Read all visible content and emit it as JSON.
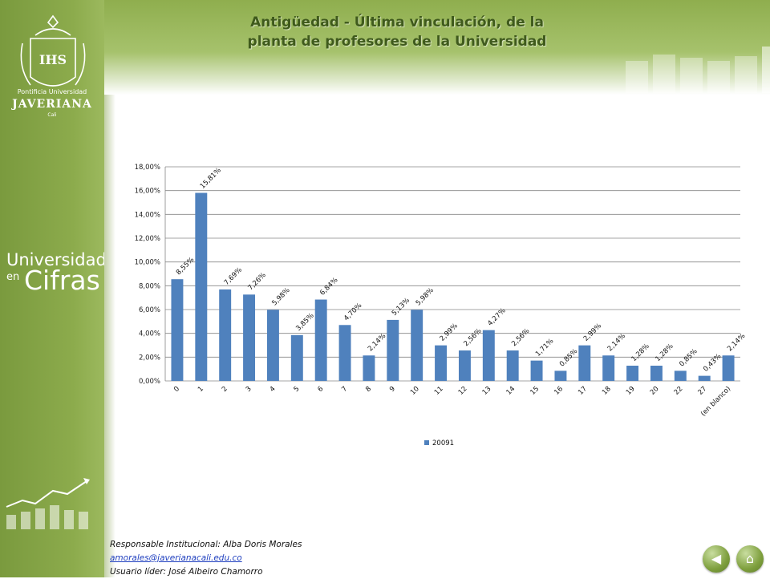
{
  "header": {
    "title_line1": "Antigüedad -  Última vinculación,  de la",
    "title_line2": "planta de profesores de la Universidad"
  },
  "sidebar": {
    "logo_line1": "Pontificia Universidad",
    "logo_line2": "JAVERIANA",
    "logo_line3": "Cali",
    "brand_word1": "Universidad",
    "brand_word2": "en",
    "brand_word3": "Cifras"
  },
  "footer": {
    "responsable": "Responsable  Institucional: Alba Doris Morales",
    "email": "amorales@javerianacali.edu.co",
    "usuario": "Usuario líder: José  Albeiro Chamorro"
  },
  "nav": {
    "back_icon": "back-arrow-icon",
    "home_icon": "home-icon"
  },
  "colors": {
    "bar": "#4f81bd",
    "accent": "#8cab4c",
    "title": "#3f5a1c"
  },
  "chart_data": {
    "type": "bar",
    "categories": [
      "0",
      "1",
      "2",
      "3",
      "4",
      "5",
      "6",
      "7",
      "8",
      "9",
      "10",
      "11",
      "12",
      "13",
      "14",
      "15",
      "16",
      "17",
      "18",
      "19",
      "20",
      "22",
      "27",
      "(en blanco)"
    ],
    "series": [
      {
        "name": "20091",
        "values": [
          8.55,
          15.81,
          7.69,
          7.26,
          5.98,
          3.85,
          6.84,
          4.7,
          2.14,
          5.13,
          5.98,
          2.99,
          2.56,
          4.27,
          2.56,
          1.71,
          0.85,
          2.99,
          2.14,
          1.28,
          1.28,
          0.85,
          0.43,
          2.14
        ],
        "labels": [
          "8,55%",
          "15,81%",
          "7,69%",
          "7,26%",
          "5,98%",
          "3,85%",
          "6,84%",
          "4,70%",
          "2,14%",
          "5,13%",
          "5,98%",
          "2,99%",
          "2,56%",
          "4,27%",
          "2,56%",
          "1,71%",
          "0,85%",
          "2,99%",
          "2,14%",
          "1,28%",
          "1,28%",
          "0,85%",
          "0,43%",
          "2,14%"
        ]
      }
    ],
    "yticks": [
      "0,00%",
      "2,00%",
      "4,00%",
      "6,00%",
      "8,00%",
      "10,00%",
      "12,00%",
      "14,00%",
      "16,00%",
      "18,00%"
    ],
    "ylim": [
      0,
      18
    ],
    "grid": true,
    "legend_position": "bottom",
    "title": "",
    "xlabel": "",
    "ylabel": ""
  }
}
